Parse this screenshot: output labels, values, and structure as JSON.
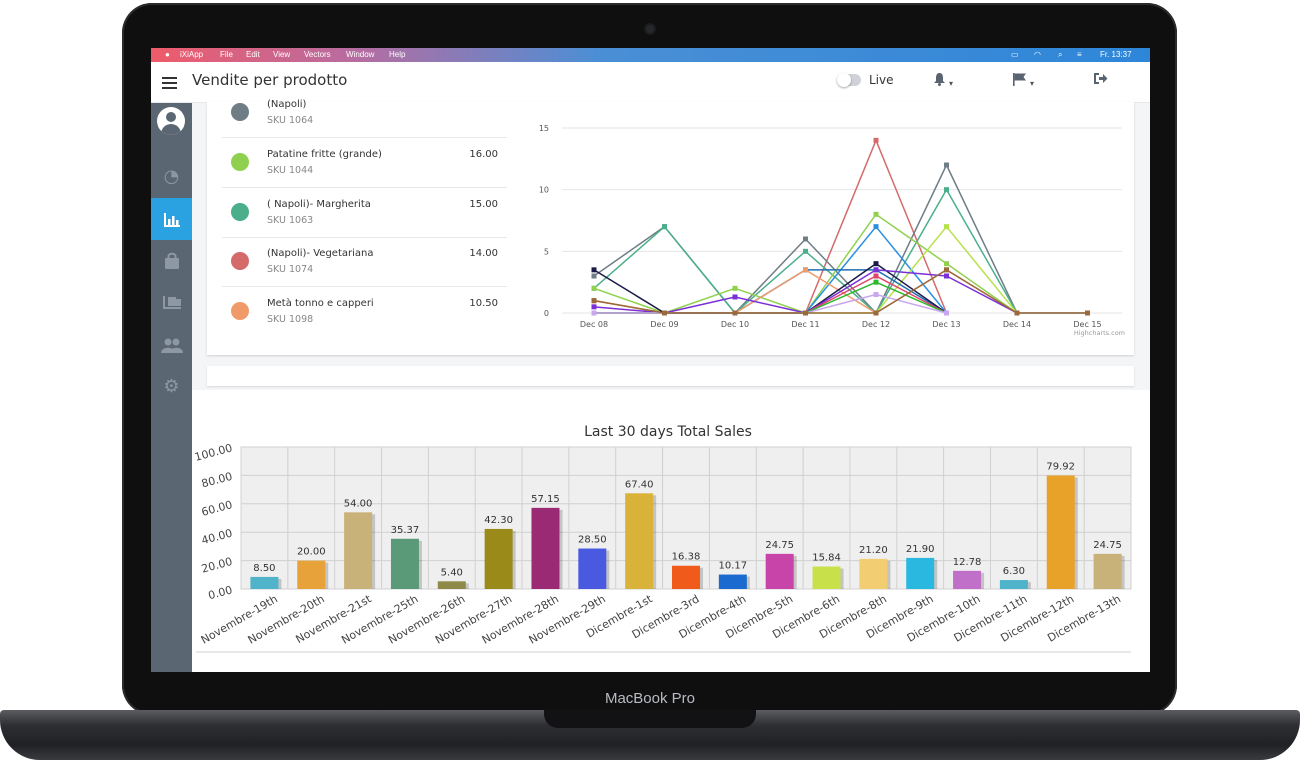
{
  "device": {
    "label": "MacBook Pro"
  },
  "menubar": {
    "items": [
      "iXiApp",
      "File",
      "Edit",
      "View",
      "Vectors",
      "Window",
      "Help"
    ],
    "clock": "Fr. 13:37"
  },
  "header": {
    "title": "Vendite per prodotto",
    "live_label": "Live",
    "icons": [
      "bell-icon",
      "flag-icon",
      "logout-icon"
    ]
  },
  "sidebar": {
    "items": [
      "avatar-icon",
      "dashboard-icon",
      "chart-icon",
      "bag-icon",
      "delivery-icon",
      "users-icon",
      "settings-icon"
    ],
    "active": "chart-icon"
  },
  "products": [
    {
      "name": "(Napoli)",
      "sku": "SKU 1064",
      "value": "",
      "color": "#6f7d85"
    },
    {
      "name": "Patatine fritte (grande)",
      "sku": "SKU 1044",
      "value": "16.00",
      "color": "#8fd14f"
    },
    {
      "name": "( Napoli)- Margherita",
      "sku": "SKU 1063",
      "value": "15.00",
      "color": "#4caf8b"
    },
    {
      "name": "(Napoli)- Vegetariana",
      "sku": "SKU 1074",
      "value": "14.00",
      "color": "#d46a6a"
    },
    {
      "name": "Metà tonno e capperi",
      "sku": "SKU 1098",
      "value": "10.50",
      "color": "#f09a6a"
    }
  ],
  "line_chart": {
    "credit": "Highcharts.com",
    "chart_data": {
      "type": "line",
      "categories": [
        "Dec 08",
        "Dec 09",
        "Dec 10",
        "Dec 11",
        "Dec 12",
        "Dec 13",
        "Dec 14",
        "Dec 15"
      ],
      "yticks": [
        0,
        5,
        10,
        15
      ],
      "ylim": [
        0,
        15
      ],
      "series": [
        {
          "color": "#d46a6a",
          "values": [
            1,
            0,
            0,
            0,
            14,
            0,
            null,
            null
          ]
        },
        {
          "color": "#6f7d85",
          "values": [
            3,
            7,
            0,
            6,
            0,
            12,
            0,
            0
          ]
        },
        {
          "color": "#4caf8b",
          "values": [
            2,
            7,
            0,
            5,
            0,
            10,
            0,
            null
          ]
        },
        {
          "color": "#8fd14f",
          "values": [
            2,
            0,
            2,
            0,
            8,
            4,
            0,
            null
          ]
        },
        {
          "color": "#2a8fe0",
          "values": [
            0,
            0,
            0,
            0,
            7,
            0,
            null,
            null
          ]
        },
        {
          "color": "#b7e14a",
          "values": [
            0,
            0,
            0,
            0,
            0,
            7,
            0,
            null
          ]
        },
        {
          "color": "#1f6fb2",
          "values": [
            0,
            0,
            0,
            3.5,
            3.5,
            0,
            null,
            null
          ]
        },
        {
          "color": "#f09a6a",
          "values": [
            1,
            0,
            0,
            3.5,
            0,
            3.5,
            0,
            null
          ]
        },
        {
          "color": "#1b1b4a",
          "values": [
            3.5,
            0,
            0,
            0,
            4,
            0,
            null,
            null
          ]
        },
        {
          "color": "#7b2fd6",
          "values": [
            0.5,
            0,
            1.3,
            0,
            3.5,
            3,
            0,
            null
          ]
        },
        {
          "color": "#e0446a",
          "values": [
            0,
            0,
            0,
            0,
            3,
            0,
            null,
            null
          ]
        },
        {
          "color": "#2eb82e",
          "values": [
            0,
            0,
            0,
            0,
            2.5,
            0,
            null,
            null
          ]
        },
        {
          "color": "#c9a7ef",
          "values": [
            0,
            0,
            0,
            0,
            1.5,
            0,
            null,
            null
          ]
        },
        {
          "color": "#9a6a3a",
          "values": [
            1,
            0,
            0,
            0,
            0,
            3.5,
            0,
            0
          ]
        }
      ]
    }
  },
  "bar_chart": {
    "chart_data": {
      "type": "bar",
      "title": "Last 30 days Total Sales",
      "categories": [
        "Novembre-19th",
        "Novembre-20th",
        "Novembre-21st",
        "Novembre-25th",
        "Novembre-26th",
        "Novembre-27th",
        "Novembre-28th",
        "Novembre-29th",
        "Dicembre-1st",
        "Dicembre-3rd",
        "Dicembre-4th",
        "Dicembre-5th",
        "Dicembre-6th",
        "Dicembre-8th",
        "Dicembre-9th",
        "Dicembre-10th",
        "Dicembre-11th",
        "Dicembre-12th",
        "Dicembre-13th"
      ],
      "values": [
        8.5,
        20,
        54,
        35.37,
        5.4,
        42.3,
        57.15,
        28.5,
        67.4,
        16.38,
        10.17,
        24.75,
        15.84,
        21.2,
        21.9,
        12.78,
        6.3,
        79.92,
        24.75
      ],
      "labels": [
        "8.50",
        "20.00",
        "54.00",
        "35.37",
        "5.40",
        "42.30",
        "57.15",
        "28.50",
        "67.40",
        "16.38",
        "10.17",
        "24.75",
        "15.84",
        "21.20",
        "21.90",
        "12.78",
        "6.30",
        "79.92",
        "24.75"
      ],
      "colors": [
        "#4fb3c9",
        "#e8a23a",
        "#c9b27a",
        "#5a9a78",
        "#8f8a4a",
        "#9a8a1a",
        "#9a2a74",
        "#4a5ae0",
        "#d9b23a",
        "#f05a1a",
        "#1a6ad0",
        "#c944a8",
        "#c8e04a",
        "#f2cd72",
        "#2ab8e0",
        "#c070c8",
        "#4fb3c9",
        "#e8a22a",
        "#c9b27a"
      ],
      "yticks": [
        "0.00",
        "20.00",
        "40.00",
        "60.00",
        "80.00",
        "100.00"
      ],
      "ylim": [
        0,
        100
      ],
      "grid": true
    }
  }
}
